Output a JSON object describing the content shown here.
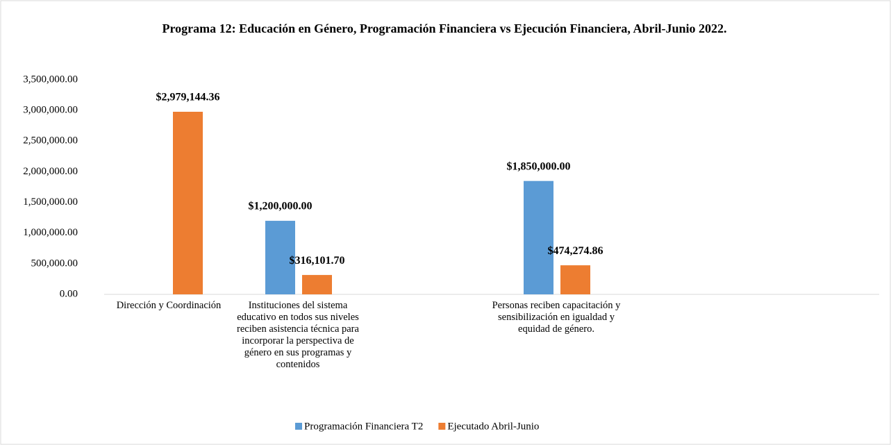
{
  "chart_data": {
    "type": "bar",
    "title": "Programa 12: Educación en Género, Programación Financiera vs Ejecución Financiera, Abril-Junio 2022.",
    "categories": [
      "Dirección y Coordinación",
      "Instituciones del sistema educativo en todos sus niveles reciben asistencia técnica para incorporar la perspectiva de género en sus programas y contenidos",
      null,
      "Personas reciben capacitación y sensibilización en igualdad y equidad de género.",
      null,
      null
    ],
    "series": [
      {
        "name": "Programación Financiera T2",
        "color": "#5b9bd5",
        "values": [
          null,
          1200000,
          null,
          1850000,
          null,
          null
        ],
        "value_labels": [
          null,
          "$1,200,000.00",
          null,
          "$1,850,000.00",
          null,
          null
        ]
      },
      {
        "name": "Ejecutado Abril-Junio",
        "color": "#ed7d31",
        "values": [
          2979144.36,
          316101.7,
          null,
          474274.86,
          null,
          null
        ],
        "value_labels": [
          "$2,979,144.36",
          "$316,101.70",
          null,
          "$474,274.86",
          null,
          null
        ]
      }
    ],
    "ylim": [
      0,
      3500000
    ],
    "yticks": [
      {
        "value": 0,
        "label": "0.00"
      },
      {
        "value": 500000,
        "label": "500,000.00"
      },
      {
        "value": 1000000,
        "label": "1,000,000.00"
      },
      {
        "value": 1500000,
        "label": "1,500,000.00"
      },
      {
        "value": 2000000,
        "label": "2,000,000.00"
      },
      {
        "value": 2500000,
        "label": "2,500,000.00"
      },
      {
        "value": 3000000,
        "label": "3,000,000.00"
      },
      {
        "value": 3500000,
        "label": "3,500,000.00"
      }
    ],
    "grid": false,
    "legend": "bottom"
  }
}
